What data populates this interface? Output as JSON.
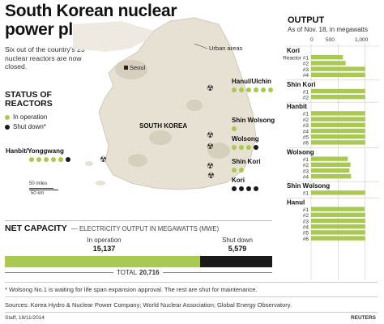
{
  "header": {
    "title": "South Korean nuclear power plants",
    "subtitle": "Six out of the country's 23 nuclear reactors are now closed."
  },
  "map": {
    "urban_label": "Urban areas",
    "seoul_label": "Seoul",
    "country_label": "SOUTH KOREA",
    "scale_miles": "50 miles",
    "scale_km": "50 km",
    "plants": [
      {
        "label": "Hanul/Ulchin",
        "dots": [
          "on",
          "on",
          "on",
          "on",
          "on",
          "on"
        ]
      },
      {
        "label": "Shin Wolsong",
        "dots": [
          "on"
        ]
      },
      {
        "label": "Wolsong",
        "dots": [
          "on",
          "on",
          "on",
          "off"
        ]
      },
      {
        "label": "Hanbit/Yonggwang",
        "dots": [
          "on",
          "on",
          "on",
          "on",
          "on",
          "off"
        ]
      },
      {
        "label": "Shin Kori",
        "dots": [
          "on",
          "on"
        ]
      },
      {
        "label": "Kori",
        "dots": [
          "off",
          "off",
          "off",
          "off"
        ]
      }
    ]
  },
  "legend": {
    "title": "STATUS OF REACTORS",
    "in_operation": "In operation",
    "shut_down": "Shut down*",
    "color_operation": "#a9c952",
    "color_shutdown": "#1a1a1a"
  },
  "net_capacity": {
    "title": "NET CAPACITY",
    "subtitle": "— ELECTRICITY OUTPUT IN MEGAWATTS (MWE)",
    "operation_label": "In operation",
    "operation_value": "15,137",
    "shutdown_label": "Shut down",
    "shutdown_value": "5,579",
    "total_label": "TOTAL",
    "total_value": "20,716"
  },
  "output": {
    "title": "OUTPUT",
    "subtitle": "As of Nov. 18, in megawatts",
    "reactor_prefix": "Reactor",
    "ticks": [
      "0",
      "500",
      "1,000"
    ]
  },
  "footer": {
    "note": "* Wolsong No.1 is waiting for life span expansion approval. The rest are shut for maintenance.",
    "sources": "Sources: Korea Hydro & Nuclear Power Company; World Nuclear Association; Global Energy Observatory.",
    "credit": "Staff, 18/11/2014",
    "brand": "REUTERS"
  },
  "chart_data": [
    {
      "type": "bar",
      "title": "OUTPUT",
      "subtitle": "As of Nov. 18, in megawatts",
      "xlim": [
        0,
        1200
      ],
      "ticks": [
        0,
        500,
        1000
      ],
      "groups": [
        {
          "name": "Kori",
          "reactors": [
            {
              "label": "#1",
              "value": 590
            },
            {
              "label": "#2",
              "value": 640
            },
            {
              "label": "#3",
              "value": 1000
            },
            {
              "label": "#4",
              "value": 1000
            }
          ]
        },
        {
          "name": "Shin Kori",
          "reactors": [
            {
              "label": "#1",
              "value": 1000
            },
            {
              "label": "#2",
              "value": 1000
            }
          ]
        },
        {
          "name": "Hanbit",
          "reactors": [
            {
              "label": "#1",
              "value": 1000
            },
            {
              "label": "#2",
              "value": 1000
            },
            {
              "label": "#3",
              "value": 1000
            },
            {
              "label": "#4",
              "value": 1000
            },
            {
              "label": "#5",
              "value": 1000
            },
            {
              "label": "#6",
              "value": 1000
            }
          ]
        },
        {
          "name": "Wolsong",
          "reactors": [
            {
              "label": "#1",
              "value": 680
            },
            {
              "label": "#2",
              "value": 730
            },
            {
              "label": "#3",
              "value": 710
            },
            {
              "label": "#4",
              "value": 740
            }
          ]
        },
        {
          "name": "Shin Wolsong",
          "reactors": [
            {
              "label": "#1",
              "value": 1000
            }
          ]
        },
        {
          "name": "Hanul",
          "reactors": [
            {
              "label": "#1",
              "value": 990
            },
            {
              "label": "#2",
              "value": 1000
            },
            {
              "label": "#3",
              "value": 1000
            },
            {
              "label": "#4",
              "value": 1000
            },
            {
              "label": "#5",
              "value": 1000
            },
            {
              "label": "#6",
              "value": 1000
            }
          ]
        }
      ]
    },
    {
      "type": "bar",
      "title": "NET CAPACITY",
      "subtitle": "ELECTRICITY OUTPUT IN MEGAWATTS (MWE)",
      "series": [
        {
          "name": "In operation",
          "values": [
            15137
          ]
        },
        {
          "name": "Shut down",
          "values": [
            5579
          ]
        }
      ],
      "total": 20716
    }
  ]
}
